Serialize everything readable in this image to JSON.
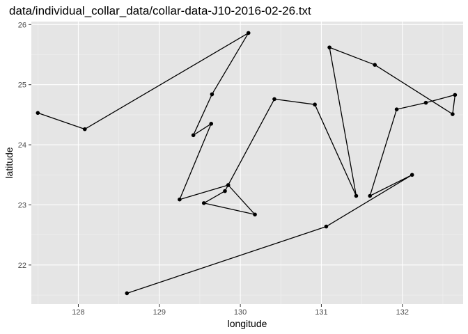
{
  "chart_data": {
    "type": "line",
    "title": "data/individual_collar_data/collar-data-J10-2016-02-26.txt",
    "xlabel": "longitude",
    "ylabel": "latitude",
    "xlim": [
      127.42,
      132.75
    ],
    "ylim": [
      21.35,
      26.05
    ],
    "x_ticks": [
      128,
      129,
      130,
      131,
      132
    ],
    "y_ticks": [
      22,
      23,
      24,
      25,
      26
    ],
    "grid": true,
    "background": "#e5e5e5",
    "grid_color": "#ffffff",
    "line_color": "#000000",
    "point_color": "#000000",
    "series": [
      {
        "x": [
          127.5,
          128.08,
          130.1,
          129.65,
          129.42,
          129.64,
          129.25,
          129.85,
          130.18,
          129.55,
          129.81,
          130.42,
          130.92,
          131.43,
          131.1,
          131.66,
          132.62,
          132.65,
          132.29,
          131.93,
          131.6,
          132.12,
          131.06,
          128.6
        ],
        "y": [
          24.53,
          24.26,
          25.86,
          24.84,
          24.16,
          24.35,
          23.09,
          23.33,
          22.84,
          23.03,
          23.23,
          24.76,
          24.67,
          23.15,
          25.62,
          25.33,
          24.51,
          24.83,
          24.7,
          24.59,
          23.15,
          23.5,
          22.64,
          21.53
        ]
      }
    ]
  }
}
